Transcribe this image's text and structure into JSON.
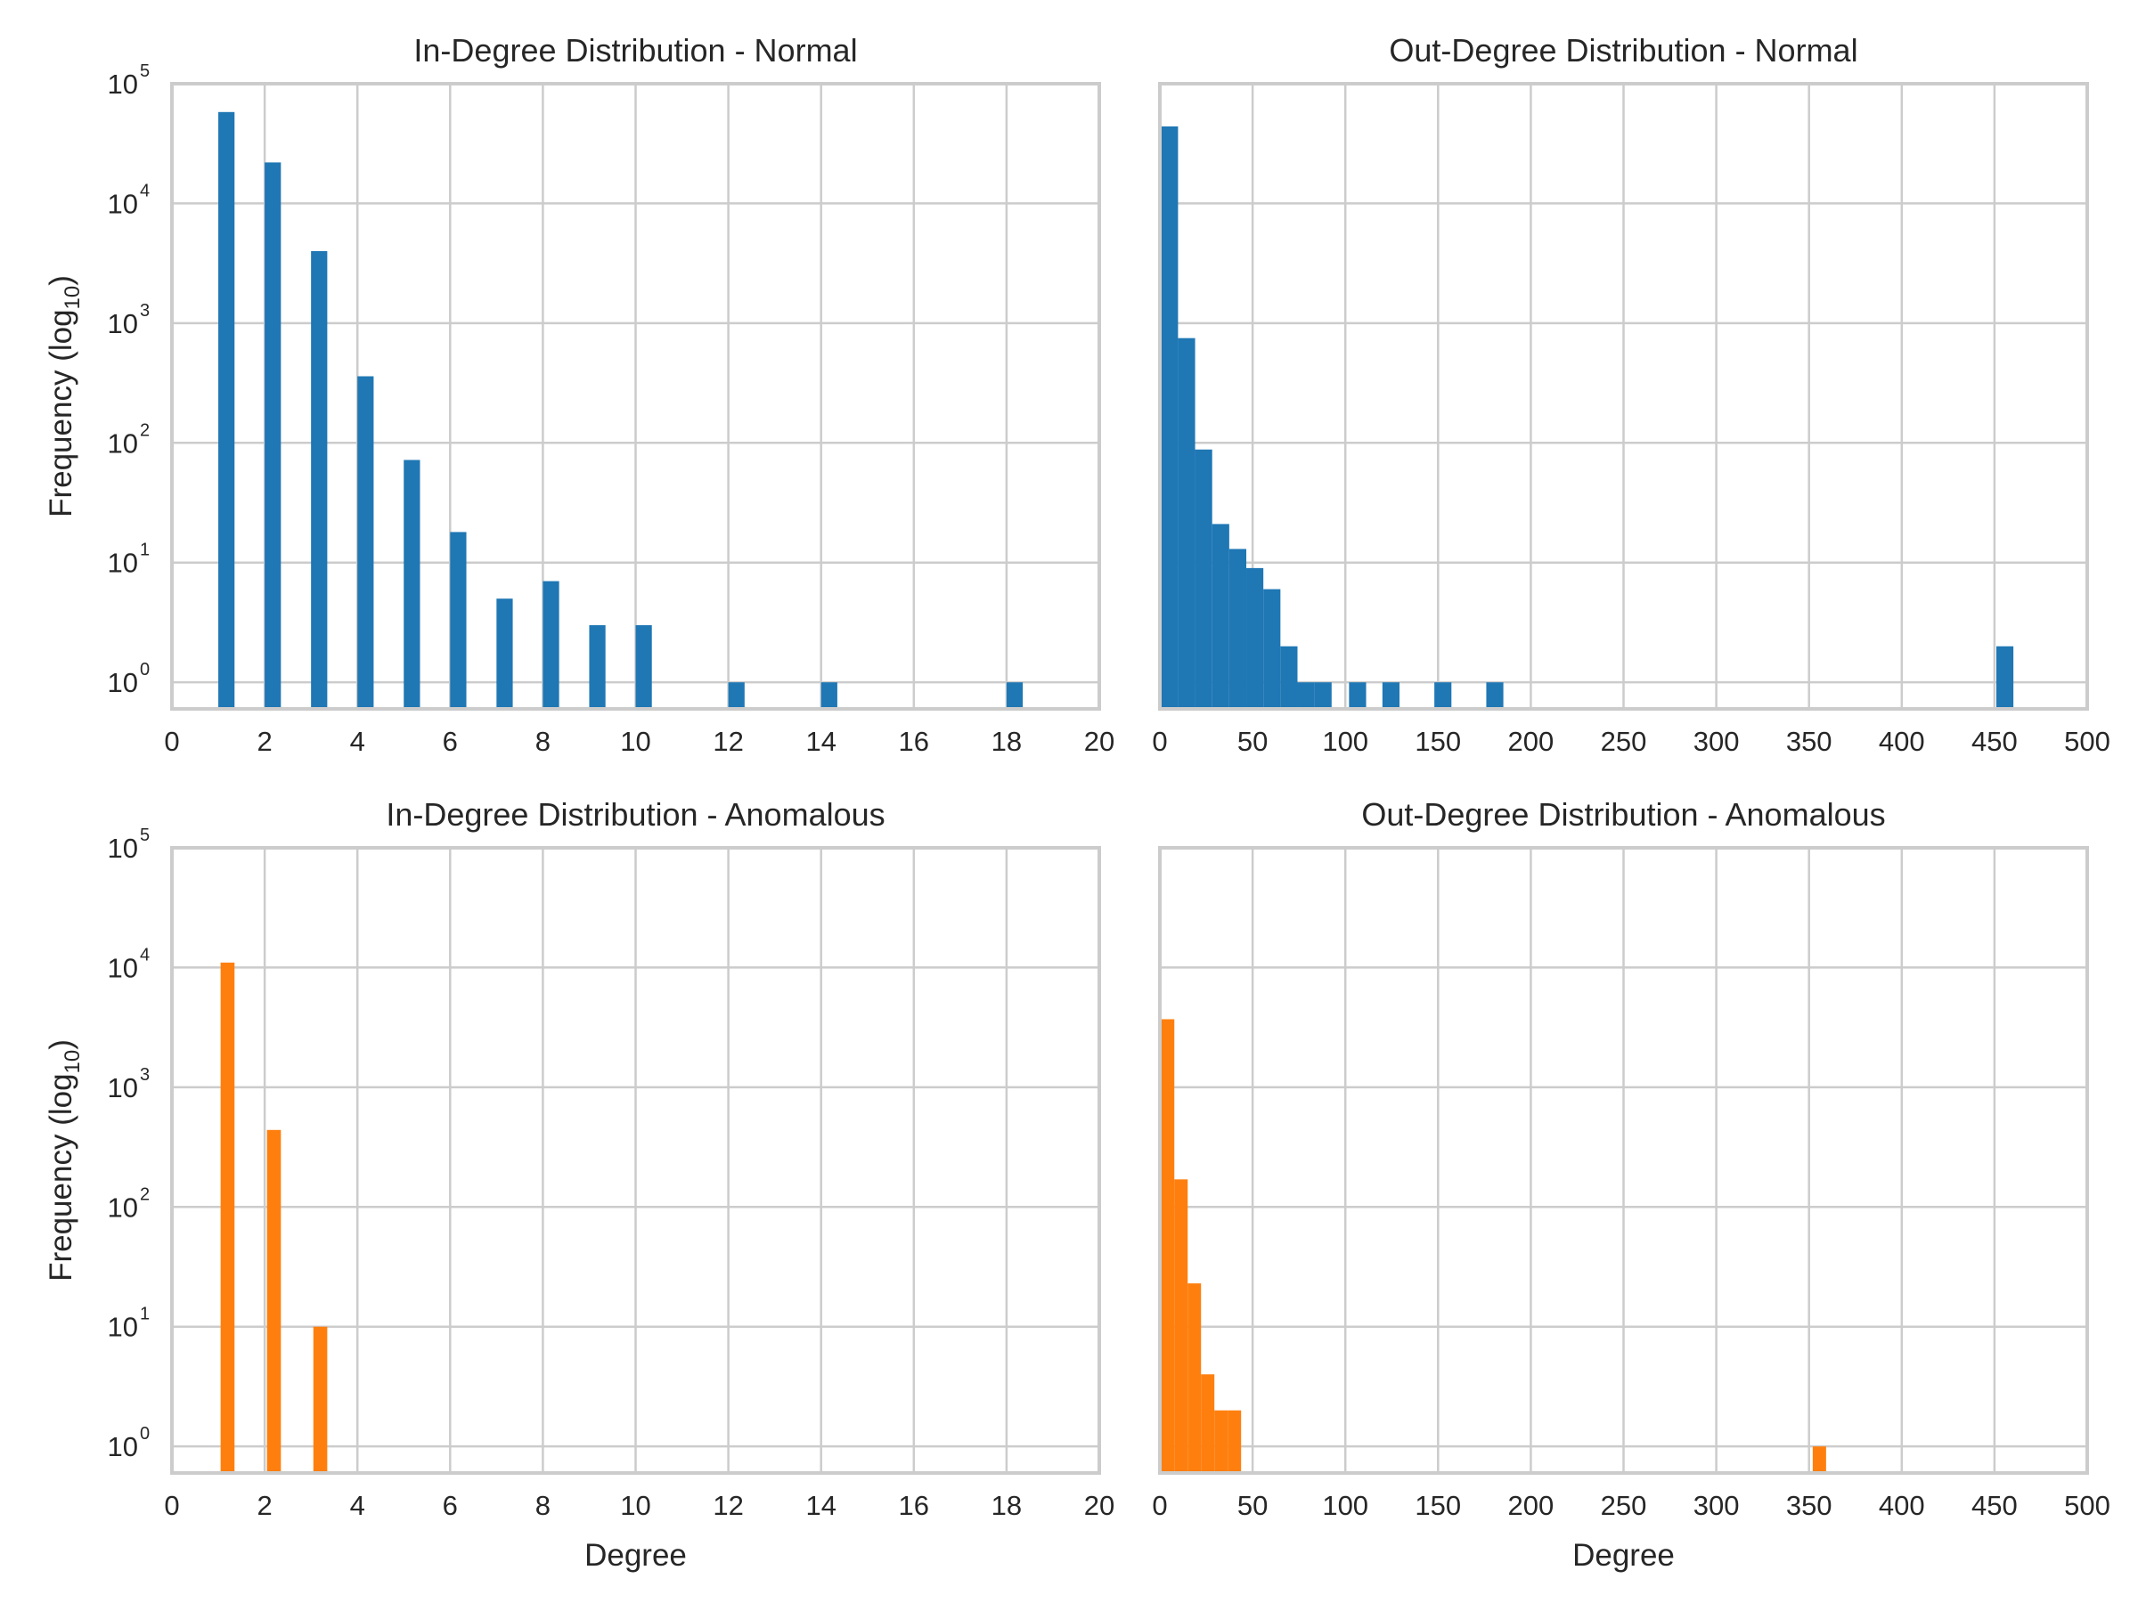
{
  "figure": {
    "panel_border_color": "#cccccc",
    "grid_color": "#cccccc",
    "background": "#ffffff"
  },
  "chart_data": [
    {
      "type": "bar",
      "title": "In-Degree Distribution - Normal",
      "xlabel": "",
      "ylabel": "Frequency (log",
      "ylabel_subscript": "10",
      "ylabel_close": ")",
      "x_scale": "linear",
      "y_scale": "log",
      "xlim": [
        0,
        20
      ],
      "ylim": [
        0.6,
        100000
      ],
      "xticks": [
        0,
        2,
        4,
        6,
        8,
        10,
        12,
        14,
        16,
        18,
        20
      ],
      "yticks": [
        {
          "base": "10",
          "exp": "0",
          "value": 1
        },
        {
          "base": "10",
          "exp": "1",
          "value": 10
        },
        {
          "base": "10",
          "exp": "2",
          "value": 100
        },
        {
          "base": "10",
          "exp": "3",
          "value": 1000
        },
        {
          "base": "10",
          "exp": "4",
          "value": 10000
        },
        {
          "base": "10",
          "exp": "5",
          "value": 100000
        }
      ],
      "grid": true,
      "color": "#1f77b4",
      "bin_width": 0.35,
      "bins": [
        {
          "x": 1,
          "count": 58000
        },
        {
          "x": 2,
          "count": 22000
        },
        {
          "x": 3,
          "count": 4000
        },
        {
          "x": 4,
          "count": 360
        },
        {
          "x": 5,
          "count": 72
        },
        {
          "x": 6,
          "count": 18
        },
        {
          "x": 7,
          "count": 5
        },
        {
          "x": 8,
          "count": 7
        },
        {
          "x": 9,
          "count": 3
        },
        {
          "x": 10,
          "count": 3
        },
        {
          "x": 12,
          "count": 1
        },
        {
          "x": 14,
          "count": 1
        },
        {
          "x": 18,
          "count": 1
        }
      ]
    },
    {
      "type": "bar",
      "title": "Out-Degree Distribution - Normal",
      "xlabel": "",
      "ylabel": "",
      "x_scale": "linear",
      "y_scale": "log",
      "xlim": [
        0,
        500
      ],
      "ylim": [
        0.6,
        100000
      ],
      "xticks": [
        0,
        50,
        100,
        150,
        200,
        250,
        300,
        350,
        400,
        450,
        500
      ],
      "yticks": [],
      "grid": true,
      "color": "#1f77b4",
      "bin_width": 9.2,
      "bins": [
        {
          "x": 0.6,
          "count": 44000
        },
        {
          "x": 9.8,
          "count": 750
        },
        {
          "x": 19,
          "count": 88
        },
        {
          "x": 28.2,
          "count": 21
        },
        {
          "x": 37.4,
          "count": 13
        },
        {
          "x": 46.6,
          "count": 9
        },
        {
          "x": 55.8,
          "count": 6
        },
        {
          "x": 65,
          "count": 2
        },
        {
          "x": 74.2,
          "count": 1
        },
        {
          "x": 83.4,
          "count": 1
        },
        {
          "x": 102,
          "count": 1
        },
        {
          "x": 120,
          "count": 1
        },
        {
          "x": 148,
          "count": 1
        },
        {
          "x": 176,
          "count": 1
        },
        {
          "x": 451,
          "count": 2
        }
      ]
    },
    {
      "type": "bar",
      "title": "In-Degree Distribution - Anomalous",
      "xlabel": "Degree",
      "ylabel": "Frequency (log",
      "ylabel_subscript": "10",
      "ylabel_close": ")",
      "x_scale": "linear",
      "y_scale": "log",
      "xlim": [
        0,
        20
      ],
      "ylim": [
        0.6,
        100000
      ],
      "xticks": [
        0,
        2,
        4,
        6,
        8,
        10,
        12,
        14,
        16,
        18,
        20
      ],
      "yticks": [
        {
          "base": "10",
          "exp": "0",
          "value": 1
        },
        {
          "base": "10",
          "exp": "1",
          "value": 10
        },
        {
          "base": "10",
          "exp": "2",
          "value": 100
        },
        {
          "base": "10",
          "exp": "3",
          "value": 1000
        },
        {
          "base": "10",
          "exp": "4",
          "value": 10000
        },
        {
          "base": "10",
          "exp": "5",
          "value": 100000
        }
      ],
      "grid": true,
      "color": "#ff7f0e",
      "bin_width": 0.3,
      "bins": [
        {
          "x": 1.05,
          "count": 11000
        },
        {
          "x": 2.05,
          "count": 440
        },
        {
          "x": 3.05,
          "count": 10
        }
      ]
    },
    {
      "type": "bar",
      "title": "Out-Degree Distribution - Anomalous",
      "xlabel": "Degree",
      "ylabel": "",
      "x_scale": "linear",
      "y_scale": "log",
      "xlim": [
        0,
        500
      ],
      "ylim": [
        0.6,
        100000
      ],
      "xticks": [
        0,
        50,
        100,
        150,
        200,
        250,
        300,
        350,
        400,
        450,
        500
      ],
      "yticks": [],
      "grid": true,
      "color": "#ff7f0e",
      "bin_width": 7.2,
      "bins": [
        {
          "x": 0.6,
          "count": 3700
        },
        {
          "x": 7.8,
          "count": 170
        },
        {
          "x": 15,
          "count": 23
        },
        {
          "x": 22.2,
          "count": 4
        },
        {
          "x": 29.4,
          "count": 2
        },
        {
          "x": 36.6,
          "count": 2
        },
        {
          "x": 352,
          "count": 1
        }
      ]
    }
  ]
}
